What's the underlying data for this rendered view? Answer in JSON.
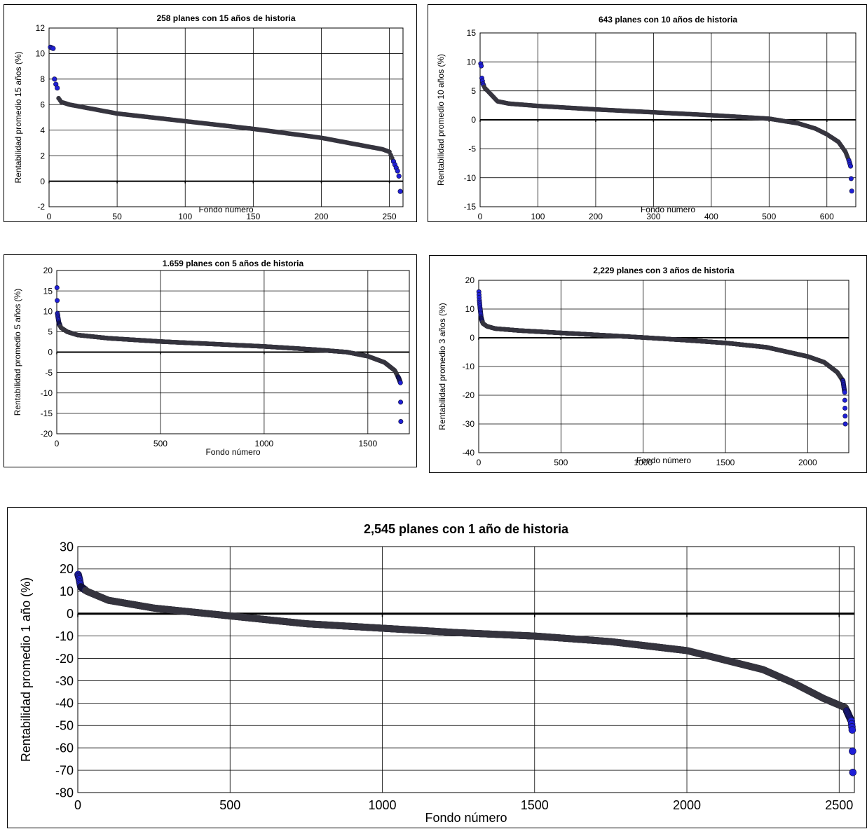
{
  "chart_data": [
    {
      "type": "scatter",
      "title": "258 planes con 15 años de historia",
      "xlabel": "Fondo número",
      "ylabel": "Rentabilidad promedio 15 años (%)",
      "xlim": [
        0,
        260
      ],
      "ylim": [
        -2,
        12
      ],
      "xticks": [
        0,
        50,
        100,
        150,
        200,
        250
      ],
      "yticks": [
        -2,
        0,
        2,
        4,
        6,
        8,
        10,
        12
      ],
      "grid": true,
      "n": 258,
      "curve": [
        [
          1,
          10.5
        ],
        [
          3,
          10.4
        ],
        [
          4,
          8.0
        ],
        [
          5,
          7.6
        ],
        [
          6,
          7.3
        ],
        [
          7,
          6.5
        ],
        [
          9,
          6.2
        ],
        [
          15,
          6.0
        ],
        [
          30,
          5.7
        ],
        [
          50,
          5.3
        ],
        [
          75,
          5.0
        ],
        [
          100,
          4.7
        ],
        [
          150,
          4.1
        ],
        [
          200,
          3.4
        ],
        [
          225,
          2.9
        ],
        [
          245,
          2.5
        ],
        [
          250,
          2.3
        ],
        [
          252,
          1.8
        ],
        [
          254,
          1.3
        ],
        [
          256,
          0.8
        ],
        [
          257,
          0.4
        ],
        [
          258,
          -0.8
        ]
      ]
    },
    {
      "type": "scatter",
      "title": "643 planes con 10 años de historia",
      "xlabel": "Fondo número",
      "ylabel": "Rentabilidad promedio 10 años (%)",
      "xlim": [
        0,
        650
      ],
      "ylim": [
        -15,
        15
      ],
      "xticks": [
        0,
        100,
        200,
        300,
        400,
        500,
        600
      ],
      "yticks": [
        -15,
        -10,
        -5,
        0,
        5,
        10,
        15
      ],
      "grid": true,
      "n": 643,
      "curve": [
        [
          1,
          9.7
        ],
        [
          2,
          9.3
        ],
        [
          3,
          7.2
        ],
        [
          5,
          6.2
        ],
        [
          8,
          5.5
        ],
        [
          15,
          4.8
        ],
        [
          30,
          3.2
        ],
        [
          50,
          2.8
        ],
        [
          100,
          2.4
        ],
        [
          200,
          1.8
        ],
        [
          300,
          1.3
        ],
        [
          400,
          0.8
        ],
        [
          500,
          0.2
        ],
        [
          550,
          -0.6
        ],
        [
          580,
          -1.5
        ],
        [
          600,
          -2.5
        ],
        [
          620,
          -3.8
        ],
        [
          632,
          -5.5
        ],
        [
          638,
          -7.0
        ],
        [
          641,
          -8.0
        ],
        [
          643,
          -12.3
        ]
      ]
    },
    {
      "type": "scatter",
      "title": "1.659 planes con 5 años de historia",
      "xlabel": "Fondo número",
      "ylabel": "Rentabilidad promedio 5 años (%)",
      "xlim": [
        0,
        1700
      ],
      "ylim": [
        -20,
        20
      ],
      "xticks": [
        0,
        500,
        1000,
        1500
      ],
      "yticks": [
        -20,
        -15,
        -10,
        -5,
        0,
        5,
        10,
        15,
        20
      ],
      "grid": true,
      "n": 1659,
      "curve": [
        [
          1,
          15.8
        ],
        [
          3,
          9.5
        ],
        [
          6,
          8.5
        ],
        [
          10,
          7.2
        ],
        [
          20,
          6.0
        ],
        [
          50,
          5.0
        ],
        [
          100,
          4.2
        ],
        [
          250,
          3.4
        ],
        [
          500,
          2.6
        ],
        [
          750,
          2.0
        ],
        [
          1000,
          1.4
        ],
        [
          1250,
          0.6
        ],
        [
          1400,
          0.0
        ],
        [
          1500,
          -1.0
        ],
        [
          1580,
          -2.5
        ],
        [
          1630,
          -4.5
        ],
        [
          1650,
          -6.5
        ],
        [
          1657,
          -7.5
        ],
        [
          1659,
          -17.0
        ]
      ]
    },
    {
      "type": "scatter",
      "title": "2,229 planes con 3 años de historia",
      "xlabel": "Fondo número",
      "ylabel": "Rentabilidad promedio 3 años (%)",
      "xlim": [
        0,
        2250
      ],
      "ylim": [
        -40,
        20
      ],
      "xticks": [
        0,
        500,
        1000,
        1500,
        2000
      ],
      "yticks": [
        -40,
        -30,
        -20,
        -10,
        0,
        10,
        20
      ],
      "grid": true,
      "n": 2229,
      "curve": [
        [
          1,
          16.0
        ],
        [
          4,
          13.0
        ],
        [
          8,
          10.5
        ],
        [
          15,
          7.0
        ],
        [
          25,
          5.0
        ],
        [
          50,
          4.0
        ],
        [
          100,
          3.2
        ],
        [
          250,
          2.5
        ],
        [
          500,
          1.7
        ],
        [
          750,
          0.9
        ],
        [
          1000,
          0.1
        ],
        [
          1250,
          -0.8
        ],
        [
          1500,
          -1.8
        ],
        [
          1750,
          -3.3
        ],
        [
          2000,
          -6.5
        ],
        [
          2100,
          -8.5
        ],
        [
          2180,
          -12.0
        ],
        [
          2215,
          -15.0
        ],
        [
          2225,
          -19.0
        ],
        [
          2229,
          -30.0
        ]
      ]
    },
    {
      "type": "scatter",
      "title": "2,545 planes con 1 año de historia",
      "xlabel": "Fondo número",
      "ylabel": "Rentabilidad promedio 1 año (%)",
      "xlim": [
        0,
        2550
      ],
      "ylim": [
        -80,
        30
      ],
      "xticks": [
        0,
        500,
        1000,
        1500,
        2000,
        2500
      ],
      "yticks": [
        -80,
        -70,
        -60,
        -50,
        -40,
        -30,
        -20,
        -10,
        0,
        10,
        20,
        30
      ],
      "grid": true,
      "n": 2545,
      "curve": [
        [
          1,
          17.5
        ],
        [
          5,
          15.5
        ],
        [
          10,
          12.0
        ],
        [
          30,
          10.0
        ],
        [
          100,
          6.0
        ],
        [
          250,
          2.5
        ],
        [
          500,
          -1.0
        ],
        [
          750,
          -4.5
        ],
        [
          1000,
          -6.5
        ],
        [
          1250,
          -8.5
        ],
        [
          1500,
          -10.0
        ],
        [
          1750,
          -12.5
        ],
        [
          2000,
          -16.5
        ],
        [
          2250,
          -25.0
        ],
        [
          2350,
          -31.0
        ],
        [
          2450,
          -38.0
        ],
        [
          2520,
          -42.0
        ],
        [
          2540,
          -48.0
        ],
        [
          2543,
          -52.0
        ],
        [
          2545,
          -71.0
        ]
      ]
    }
  ],
  "colors": {
    "point": "#36353f",
    "point_accent": "#1f1fd6",
    "grid": "#000000",
    "zero_line": "#000000"
  }
}
